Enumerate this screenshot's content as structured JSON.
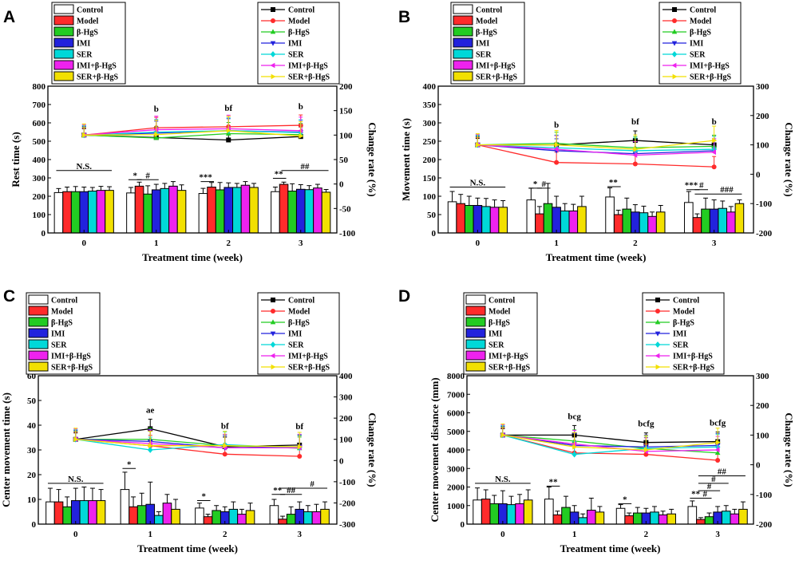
{
  "figure": {
    "title": "Behavioral test panels A–D"
  },
  "chart_data": [
    {
      "id": "A",
      "panel_label": "A",
      "type": "bar",
      "title": "",
      "xlabel": "Treatment time (week)",
      "ylabel": "Rest time (s)",
      "y2label": "Change rate (%)",
      "categories": [
        "0",
        "1",
        "2",
        "3"
      ],
      "ylim": [
        0,
        800
      ],
      "yticks": [
        0,
        100,
        200,
        300,
        400,
        500,
        600,
        700,
        800
      ],
      "y2lim": [
        -100,
        200
      ],
      "y2ticks": [
        -100,
        -50,
        0,
        50,
        100,
        150,
        200
      ],
      "series": [
        {
          "name": "Control",
          "color": "#000000",
          "marker": "square",
          "values": [
            220,
            218,
            215,
            225
          ],
          "err": [
            22,
            30,
            28,
            25
          ],
          "rate": [
            100,
            95,
            90,
            97
          ]
        },
        {
          "name": "Model",
          "color": "#ff2b2b",
          "marker": "circle",
          "values": [
            225,
            255,
            250,
            265
          ],
          "err": [
            25,
            22,
            25,
            12
          ],
          "rate": [
            100,
            115,
            117,
            120
          ]
        },
        {
          "name": "β-HgS",
          "color": "#22cc22",
          "marker": "triangle-up",
          "values": [
            225,
            212,
            235,
            228
          ],
          "err": [
            28,
            45,
            40,
            40
          ],
          "rate": [
            100,
            94,
            103,
            101
          ]
        },
        {
          "name": "IMI",
          "color": "#2222dd",
          "marker": "triangle-down",
          "values": [
            225,
            235,
            248,
            238
          ],
          "err": [
            25,
            30,
            25,
            25
          ],
          "rate": [
            100,
            104,
            109,
            106
          ]
        },
        {
          "name": "SER",
          "color": "#00d8d8",
          "marker": "diamond",
          "values": [
            228,
            242,
            248,
            236
          ],
          "err": [
            20,
            28,
            22,
            22
          ],
          "rate": [
            100,
            106,
            109,
            105
          ]
        },
        {
          "name": "IMI+β-HgS",
          "color": "#ee22ee",
          "marker": "triangle-left",
          "values": [
            232,
            255,
            260,
            245
          ],
          "err": [
            22,
            25,
            20,
            20
          ],
          "rate": [
            100,
            111,
            113,
            109
          ]
        },
        {
          "name": "SER+β-HgS",
          "color": "#f2e000",
          "marker": "triangle-right",
          "values": [
            232,
            232,
            248,
            222
          ],
          "err": [
            20,
            30,
            22,
            15
          ],
          "rate": [
            100,
            101,
            109,
            98
          ]
        }
      ],
      "group_letters": [
        {
          "category": "1",
          "text": "b"
        },
        {
          "category": "2",
          "text": "bf"
        },
        {
          "category": "3",
          "text": "b"
        }
      ],
      "brackets": [
        {
          "category": "0",
          "text": "N.S.",
          "from": 0,
          "to": 6,
          "y": 340,
          "tx": 3
        },
        {
          "category": "1",
          "text": "*",
          "from": 0,
          "to": 1,
          "y": 290,
          "tx": 0.5
        },
        {
          "category": "1",
          "text": "#",
          "from": 1,
          "to": 3,
          "y": 290,
          "tx": 2
        },
        {
          "category": "2",
          "text": "***",
          "from": 0,
          "to": 1,
          "y": 280,
          "tx": 0.3
        },
        {
          "category": "3",
          "text": "**",
          "from": 0,
          "to": 1,
          "y": 298,
          "tx": 0.4
        },
        {
          "category": "3",
          "text": "##",
          "from": 1,
          "to": 6,
          "y": 340,
          "tx": 3.5
        }
      ]
    },
    {
      "id": "B",
      "panel_label": "B",
      "type": "bar",
      "title": "",
      "xlabel": "Treatment time (week)",
      "ylabel": "Movement time (s)",
      "y2label": "Change rate (%)",
      "categories": [
        "0",
        "1",
        "2",
        "3"
      ],
      "ylim": [
        0,
        400
      ],
      "yticks": [
        0,
        50,
        100,
        150,
        200,
        250,
        300,
        350,
        400
      ],
      "y2lim": [
        -200,
        300
      ],
      "y2ticks": [
        -200,
        -100,
        0,
        100,
        200,
        300
      ],
      "series": [
        {
          "name": "Control",
          "color": "#000000",
          "marker": "square",
          "values": [
            85,
            90,
            98,
            83
          ],
          "err": [
            28,
            32,
            25,
            30
          ],
          "rate": [
            100,
            100,
            115,
            100
          ]
        },
        {
          "name": "Model",
          "color": "#ff2b2b",
          "marker": "circle",
          "values": [
            80,
            52,
            50,
            42
          ],
          "err": [
            25,
            20,
            12,
            10
          ],
          "rate": [
            100,
            40,
            35,
            25
          ]
        },
        {
          "name": "β-HgS",
          "color": "#22cc22",
          "marker": "triangle-up",
          "values": [
            75,
            80,
            65,
            65
          ],
          "err": [
            25,
            55,
            30,
            30
          ],
          "rate": [
            100,
            105,
            90,
            95
          ]
        },
        {
          "name": "IMI",
          "color": "#2222dd",
          "marker": "triangle-down",
          "values": [
            75,
            70,
            57,
            65
          ],
          "err": [
            20,
            30,
            20,
            25
          ],
          "rate": [
            100,
            80,
            70,
            80
          ]
        },
        {
          "name": "SER",
          "color": "#00d8d8",
          "marker": "diamond",
          "values": [
            72,
            60,
            55,
            67
          ],
          "err": [
            22,
            20,
            18,
            20
          ],
          "rate": [
            100,
            90,
            80,
            85
          ]
        },
        {
          "name": "IMI+β-HgS",
          "color": "#ee22ee",
          "marker": "triangle-left",
          "values": [
            70,
            60,
            45,
            57
          ],
          "err": [
            20,
            18,
            12,
            15
          ],
          "rate": [
            100,
            85,
            65,
            75
          ]
        },
        {
          "name": "SER+β-HgS",
          "color": "#f2e000",
          "marker": "triangle-right",
          "values": [
            70,
            72,
            57,
            80
          ],
          "err": [
            18,
            28,
            18,
            10
          ],
          "rate": [
            100,
            100,
            85,
            115
          ]
        }
      ],
      "group_letters": [
        {
          "category": "1",
          "text": "b"
        },
        {
          "category": "2",
          "text": "bf"
        },
        {
          "category": "3",
          "text": "b"
        }
      ],
      "brackets": [
        {
          "category": "0",
          "text": "N.S.",
          "from": 0,
          "to": 6,
          "y": 125,
          "tx": 3
        },
        {
          "category": "1",
          "text": "*",
          "from": 0,
          "to": 1,
          "y": 122,
          "tx": 0.5
        },
        {
          "category": "1",
          "text": "#",
          "from": 1,
          "to": 2,
          "y": 122,
          "tx": 1.5
        },
        {
          "category": "2",
          "text": "**",
          "from": 0,
          "to": 1,
          "y": 126,
          "tx": 0.4
        },
        {
          "category": "3",
          "text": "***",
          "from": 0,
          "to": 1,
          "y": 118,
          "tx": 0.3
        },
        {
          "category": "3",
          "text": "#",
          "from": 1,
          "to": 2,
          "y": 118,
          "tx": 1.5
        },
        {
          "category": "3",
          "text": "###",
          "from": 1,
          "to": 6,
          "y": 106,
          "tx": 4.5
        }
      ]
    },
    {
      "id": "C",
      "panel_label": "C",
      "type": "bar",
      "title": "",
      "xlabel": "Treatment time (week)",
      "ylabel": "Center movement time (s)",
      "y2label": "Change rate (%)",
      "categories": [
        "0",
        "1",
        "2",
        "3"
      ],
      "ylim": [
        0,
        60
      ],
      "yticks": [
        0,
        10,
        20,
        30,
        40,
        50,
        60
      ],
      "y2lim": [
        -300,
        400
      ],
      "y2ticks": [
        -300,
        -200,
        -100,
        0,
        100,
        200,
        300,
        400
      ],
      "series": [
        {
          "name": "Control",
          "color": "#000000",
          "marker": "square",
          "values": [
            9,
            14,
            6.5,
            7.5
          ],
          "err": [
            5.5,
            7,
            2,
            2.5
          ],
          "rate": [
            100,
            150,
            65,
            73
          ]
        },
        {
          "name": "Model",
          "color": "#ff2b2b",
          "marker": "circle",
          "values": [
            9,
            7,
            3,
            2
          ],
          "err": [
            5,
            4,
            1,
            1.2
          ],
          "rate": [
            100,
            70,
            30,
            20
          ]
        },
        {
          "name": "β-HgS",
          "color": "#22cc22",
          "marker": "triangle-up",
          "values": [
            7,
            7.5,
            5.5,
            4
          ],
          "err": [
            4,
            5,
            2,
            3
          ],
          "rate": [
            100,
            100,
            70,
            58
          ]
        },
        {
          "name": "IMI",
          "color": "#2222dd",
          "marker": "triangle-down",
          "values": [
            9.5,
            8,
            5,
            6
          ],
          "err": [
            5,
            9,
            2,
            3
          ],
          "rate": [
            100,
            90,
            60,
            65
          ]
        },
        {
          "name": "SER",
          "color": "#00d8d8",
          "marker": "diamond",
          "values": [
            9.5,
            3.5,
            6,
            5
          ],
          "err": [
            5.5,
            1.5,
            3,
            2.5
          ],
          "rate": [
            100,
            50,
            75,
            60
          ]
        },
        {
          "name": "IMI+β-HgS",
          "color": "#ee22ee",
          "marker": "triangle-left",
          "values": [
            9.5,
            8.5,
            4,
            5
          ],
          "err": [
            5,
            3.5,
            2,
            3
          ],
          "rate": [
            100,
            80,
            60,
            60
          ]
        },
        {
          "name": "SER+β-HgS",
          "color": "#f2e000",
          "marker": "triangle-right",
          "values": [
            9.5,
            6,
            5.5,
            6
          ],
          "err": [
            4.5,
            4,
            3,
            3
          ],
          "rate": [
            100,
            70,
            70,
            65
          ]
        }
      ],
      "group_letters": [
        {
          "category": "1",
          "text": "ae"
        },
        {
          "category": "2",
          "text": "bf"
        },
        {
          "category": "3",
          "text": "bf"
        }
      ],
      "brackets": [
        {
          "category": "0",
          "text": "N.S.",
          "from": 0,
          "to": 6,
          "y": 16.5,
          "tx": 3
        },
        {
          "category": "1",
          "text": "*",
          "from": 0,
          "to": 1,
          "y": 22.5,
          "tx": 0.5
        },
        {
          "category": "2",
          "text": "*",
          "from": 0,
          "to": 1,
          "y": 9.5,
          "tx": 0.5
        },
        {
          "category": "3",
          "text": "**",
          "from": 0,
          "to": 1,
          "y": 12,
          "tx": 0.4
        },
        {
          "category": "3",
          "text": "##",
          "from": 1,
          "to": 3,
          "y": 12,
          "tx": 2
        },
        {
          "category": "3",
          "text": "#",
          "from": 1,
          "to": 6,
          "y": 14.5,
          "tx": 4.5
        }
      ]
    },
    {
      "id": "D",
      "panel_label": "D",
      "type": "bar",
      "title": "",
      "xlabel": "Treatment time  (week)",
      "ylabel": "Center movement distance (mm)",
      "y2label": "Change rate (%)",
      "categories": [
        "0",
        "1",
        "2",
        "3"
      ],
      "ylim": [
        0,
        8000
      ],
      "yticks": [
        0,
        1000,
        2000,
        3000,
        4000,
        5000,
        6000,
        7000,
        8000
      ],
      "y2lim": [
        -200,
        300
      ],
      "y2ticks": [
        -200,
        -100,
        0,
        100,
        200,
        300
      ],
      "series": [
        {
          "name": "Control",
          "color": "#000000",
          "marker": "square",
          "values": [
            1300,
            1350,
            850,
            950
          ],
          "err": [
            650,
            650,
            200,
            300
          ],
          "rate": [
            100,
            100,
            75,
            78
          ]
        },
        {
          "name": "Model",
          "color": "#ff2b2b",
          "marker": "circle",
          "values": [
            1350,
            500,
            450,
            250
          ],
          "err": [
            500,
            200,
            150,
            100
          ],
          "rate": [
            100,
            40,
            35,
            15
          ]
        },
        {
          "name": "β-HgS",
          "color": "#22cc22",
          "marker": "triangle-up",
          "values": [
            1100,
            900,
            600,
            400
          ],
          "err": [
            450,
            600,
            300,
            200
          ],
          "rate": [
            100,
            80,
            55,
            40
          ]
        },
        {
          "name": "IMI",
          "color": "#2222dd",
          "marker": "triangle-down",
          "values": [
            1100,
            650,
            600,
            650
          ],
          "err": [
            700,
            350,
            250,
            300
          ],
          "rate": [
            100,
            65,
            60,
            65
          ]
        },
        {
          "name": "SER",
          "color": "#00d8d8",
          "marker": "diamond",
          "values": [
            1050,
            350,
            650,
            700
          ],
          "err": [
            450,
            200,
            300,
            300
          ],
          "rate": [
            100,
            35,
            55,
            60
          ]
        },
        {
          "name": "IMI+β-HgS",
          "color": "#ee22ee",
          "marker": "triangle-left",
          "values": [
            1100,
            750,
            500,
            550
          ],
          "err": [
            500,
            650,
            200,
            250
          ],
          "rate": [
            100,
            70,
            45,
            50
          ]
        },
        {
          "name": "SER+β-HgS",
          "color": "#f2e000",
          "marker": "triangle-right",
          "values": [
            1300,
            650,
            550,
            800
          ],
          "err": [
            550,
            300,
            250,
            400
          ],
          "rate": [
            100,
            60,
            50,
            75
          ]
        }
      ],
      "group_letters": [
        {
          "category": "1",
          "text": "bcg"
        },
        {
          "category": "2",
          "text": "bcfg"
        },
        {
          "category": "3",
          "text": "bcfg"
        }
      ],
      "brackets": [
        {
          "category": "0",
          "text": "N.S.",
          "from": 0,
          "to": 6,
          "y": 2200,
          "tx": 3
        },
        {
          "category": "1",
          "text": "**",
          "from": 0,
          "to": 1,
          "y": 2050,
          "tx": 0.5
        },
        {
          "category": "2",
          "text": "*",
          "from": 0,
          "to": 1,
          "y": 1100,
          "tx": 0.5
        },
        {
          "category": "3",
          "text": "**",
          "from": 0,
          "to": 1,
          "y": 1400,
          "tx": 0.4
        },
        {
          "category": "3",
          "text": "#",
          "from": 1,
          "to": 2,
          "y": 1400,
          "tx": 1.5
        },
        {
          "category": "3",
          "text": "#",
          "from": 1,
          "to": 3,
          "y": 1800,
          "tx": 2
        },
        {
          "category": "3",
          "text": "#",
          "from": 1,
          "to": 4,
          "y": 2200,
          "tx": 2.5
        },
        {
          "category": "3",
          "text": "##",
          "from": 1,
          "to": 6,
          "y": 2600,
          "tx": 3.5
        }
      ]
    }
  ]
}
